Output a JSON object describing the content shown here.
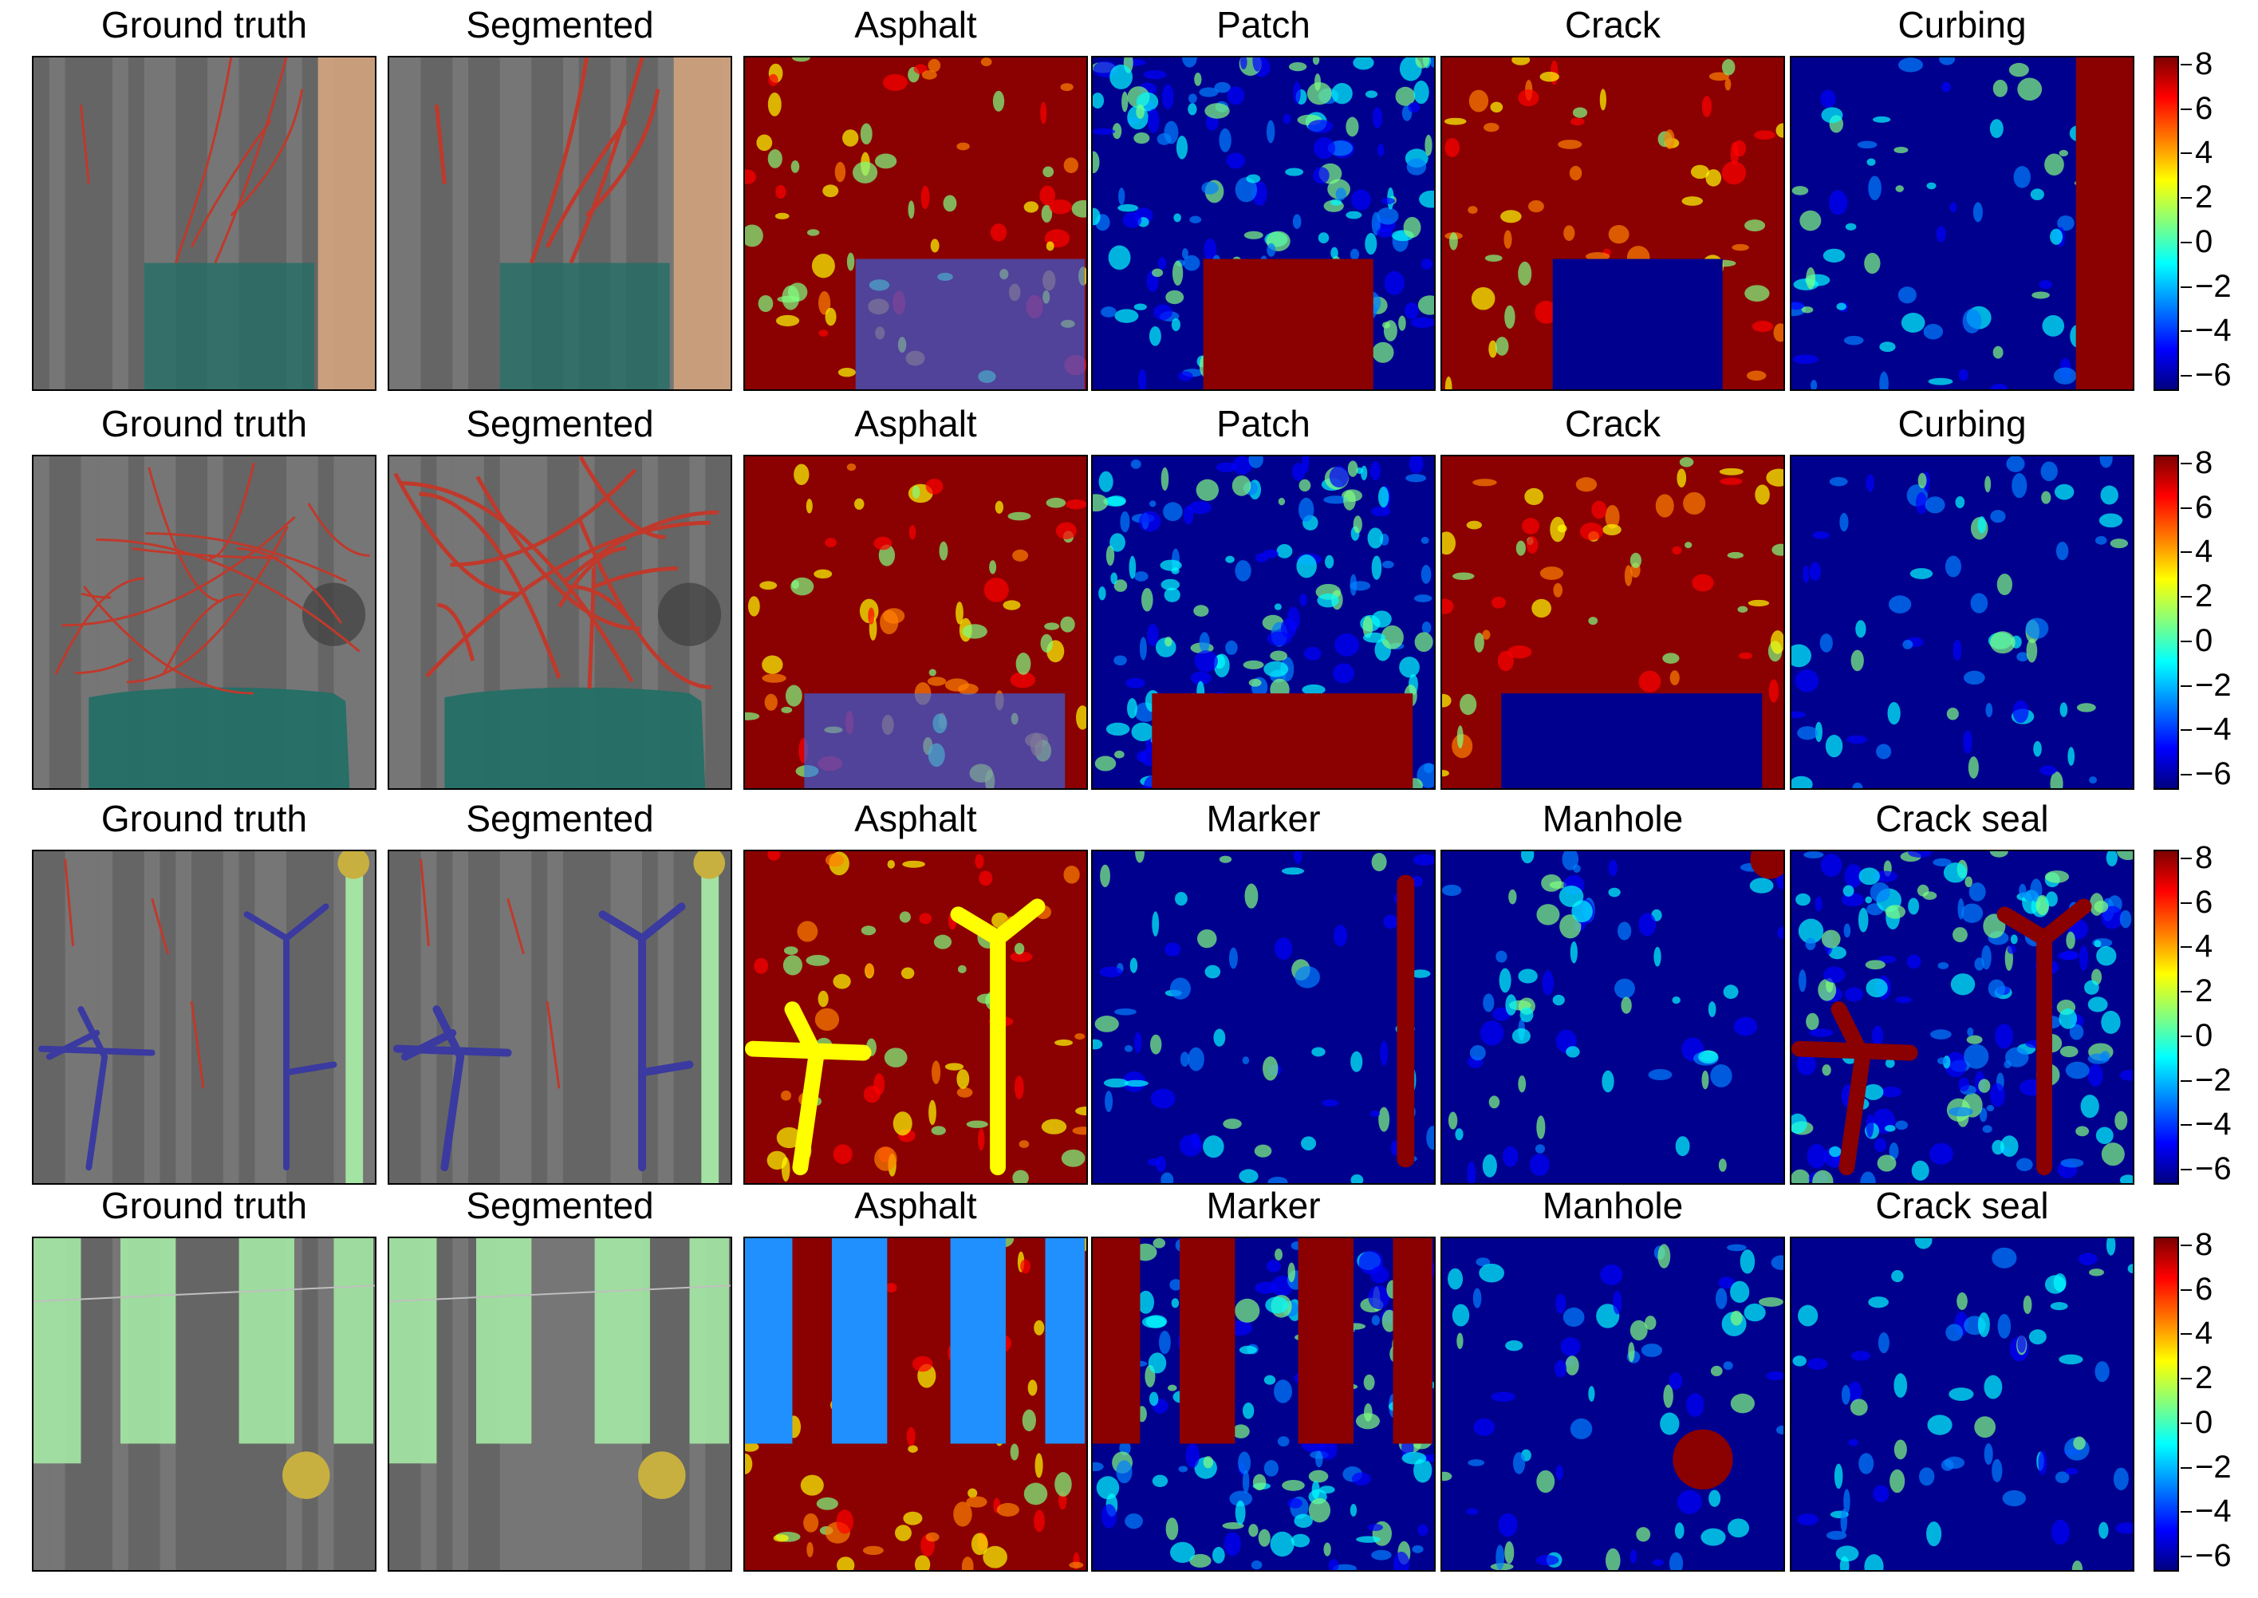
{
  "figure": {
    "rows": [
      {
        "titles": [
          "Ground truth",
          "Segmented",
          "Asphalt",
          "Patch",
          "Crack",
          "Curbing"
        ],
        "heat_dominant": [
          "hot",
          "mixed",
          "hot",
          "cold"
        ]
      },
      {
        "titles": [
          "Ground truth",
          "Segmented",
          "Asphalt",
          "Patch",
          "Crack",
          "Curbing"
        ],
        "heat_dominant": [
          "hot",
          "mixed",
          "hot",
          "cold"
        ]
      },
      {
        "titles": [
          "Ground truth",
          "Segmented",
          "Asphalt",
          "Marker",
          "Manhole",
          "Crack seal"
        ],
        "heat_dominant": [
          "hot",
          "cold",
          "cold",
          "mixed"
        ]
      },
      {
        "titles": [
          "Ground truth",
          "Segmented",
          "Asphalt",
          "Marker",
          "Manhole",
          "Crack seal"
        ],
        "heat_dominant": [
          "hot",
          "mixed",
          "cold",
          "cold"
        ]
      }
    ],
    "colorbar": {
      "ticks": [
        "8",
        "6",
        "4",
        "2",
        "0",
        "−2",
        "−4",
        "−6"
      ],
      "colormap": "jet",
      "range": [
        -6,
        8
      ]
    },
    "colors": {
      "crack": "#c0392b",
      "patch": "#1f6f66",
      "curbing": "#d9a77f",
      "crack_seal": "#3a3aa0",
      "marker": "#a8f0a8",
      "manhole": "#c8b040"
    }
  }
}
